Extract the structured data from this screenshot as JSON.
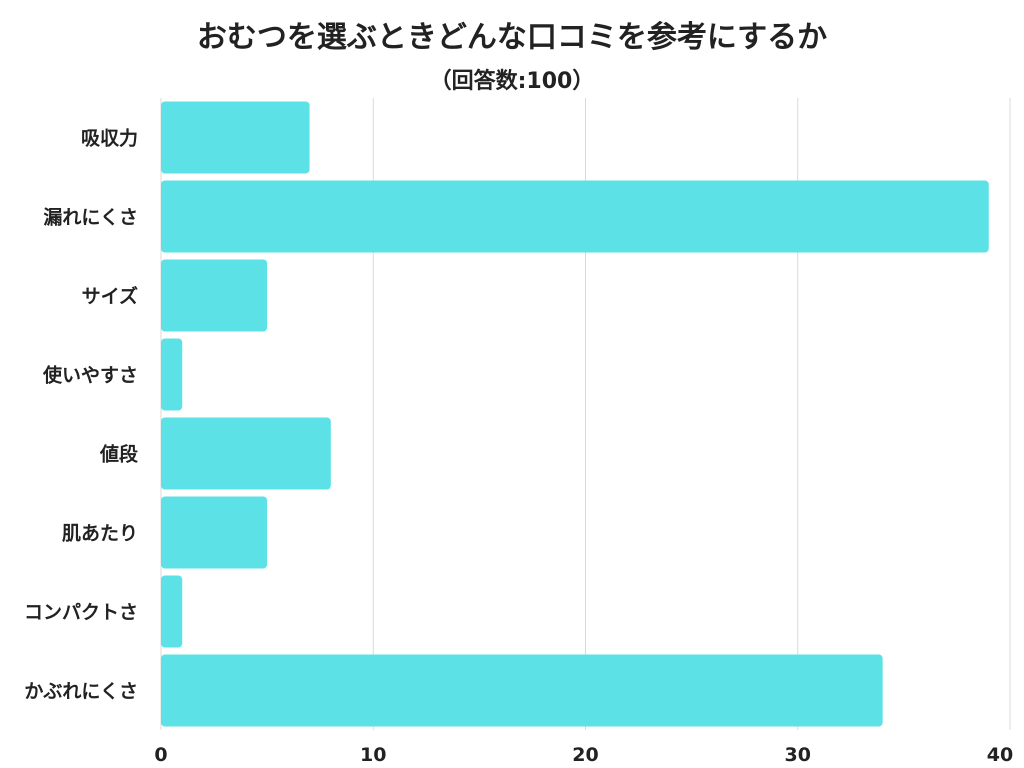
{
  "chart_data": {
    "type": "bar",
    "orientation": "horizontal",
    "title": "おむつを選ぶときどんな口コミを参考にするか",
    "subtitle": "（回答数:100）",
    "categories": [
      "吸収力",
      "漏れにくさ",
      "サイズ",
      "使いやすさ",
      "値段",
      "肌あたり",
      "コンパクトさ",
      "かぶれにくさ"
    ],
    "values": [
      7,
      39,
      5,
      1,
      8,
      5,
      1,
      34
    ],
    "xlim": [
      0,
      40
    ],
    "xticks": [
      "0",
      "10",
      "20",
      "30",
      "40"
    ],
    "xlabel": "",
    "ylabel": "",
    "grid": true,
    "legend": "none",
    "bar_color": "#5ce1e6",
    "grid_color": "#d9d9d9"
  }
}
